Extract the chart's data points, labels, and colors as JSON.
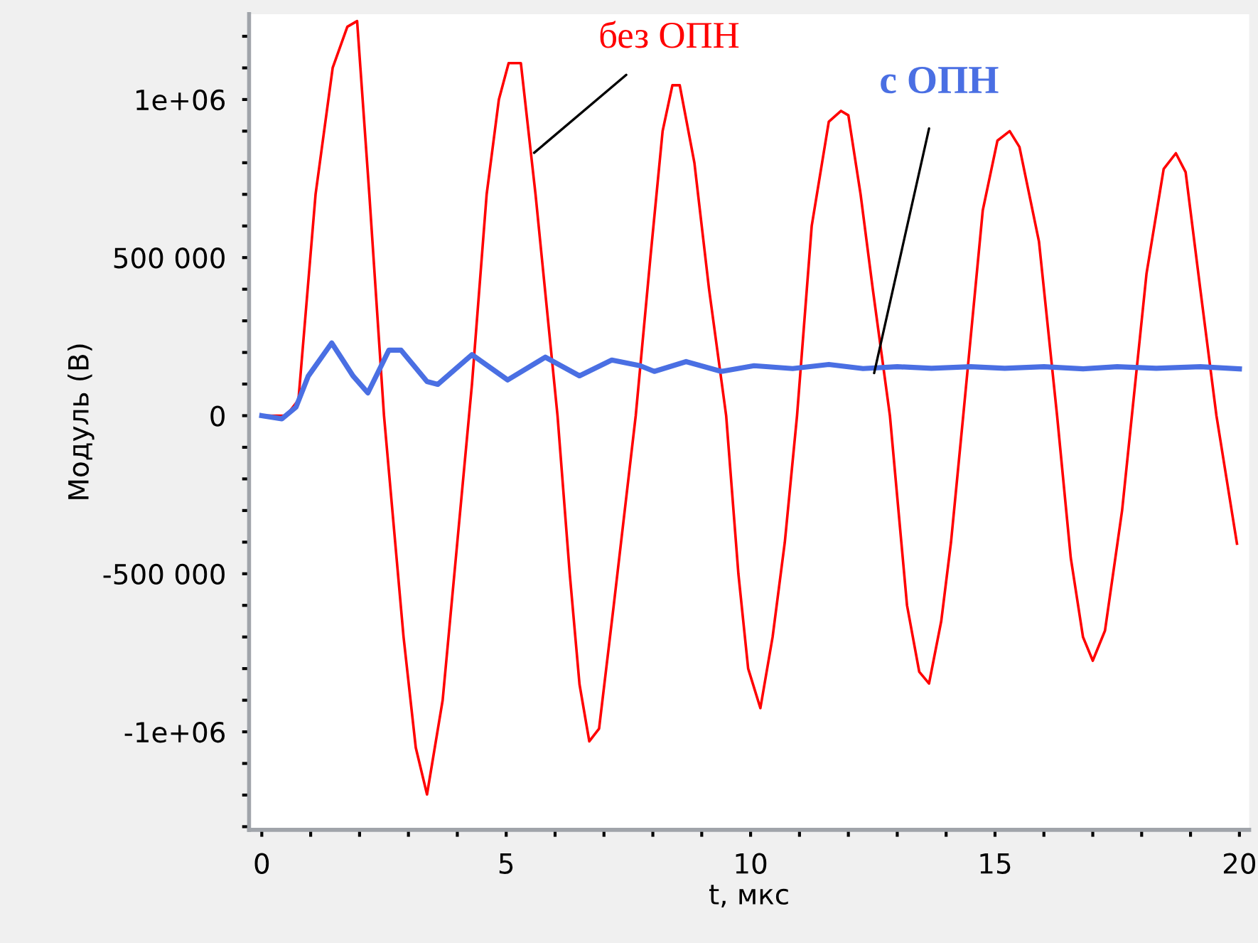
{
  "chart_data": {
    "type": "line",
    "xlabel": "t, мкс",
    "ylabel": "Модуль (В)",
    "xlim": [
      -0.26,
      20.2
    ],
    "ylim": [
      -1310000,
      1270000
    ],
    "xticks": [
      0,
      {
        "value": 1,
        "label": null
      },
      {
        "value": 2,
        "label": null
      },
      {
        "value": 3,
        "label": null
      },
      {
        "value": 4,
        "label": null
      },
      5,
      {
        "value": 6,
        "label": null
      },
      {
        "value": 7,
        "label": null
      },
      {
        "value": 8,
        "label": null
      },
      {
        "value": 9,
        "label": null
      },
      10,
      {
        "value": 11,
        "label": null
      },
      {
        "value": 12,
        "label": null
      },
      {
        "value": 13,
        "label": null
      },
      {
        "value": 14,
        "label": null
      },
      15,
      {
        "value": 16,
        "label": null
      },
      {
        "value": 17,
        "label": null
      },
      {
        "value": 18,
        "label": null
      },
      {
        "value": 19,
        "label": null
      },
      20
    ],
    "yticks": [
      {
        "value": -1300000,
        "label": null
      },
      {
        "value": -1200000,
        "label": null
      },
      {
        "value": -1100000,
        "label": null
      },
      {
        "value": -1000000,
        "label": "-1e+06"
      },
      {
        "value": -900000,
        "label": null
      },
      {
        "value": -800000,
        "label": null
      },
      {
        "value": -700000,
        "label": null
      },
      {
        "value": -600000,
        "label": null
      },
      {
        "value": -500000,
        "label": "-500 000"
      },
      {
        "value": -400000,
        "label": null
      },
      {
        "value": -300000,
        "label": null
      },
      {
        "value": -200000,
        "label": null
      },
      {
        "value": -100000,
        "label": null
      },
      0,
      {
        "value": 100000,
        "label": null
      },
      {
        "value": 200000,
        "label": null
      },
      {
        "value": 300000,
        "label": null
      },
      {
        "value": 400000,
        "label": null
      },
      {
        "value": 500000,
        "label": "500 000"
      },
      {
        "value": 600000,
        "label": null
      },
      {
        "value": 700000,
        "label": null
      },
      {
        "value": 800000,
        "label": null
      },
      {
        "value": 900000,
        "label": null
      },
      {
        "value": 1000000,
        "label": "1e+06"
      },
      {
        "value": 1100000,
        "label": null
      },
      {
        "value": 1200000,
        "label": null
      }
    ],
    "grid": false,
    "legend": false,
    "marker": "none",
    "line_style": "solid",
    "series": [
      {
        "name": "без ОПН",
        "color": "#ff0000",
        "x": [
          0,
          0.5,
          0.75,
          1.1,
          1.45,
          1.75,
          1.95,
          2.2,
          2.5,
          2.9,
          3.15,
          3.38,
          3.7,
          4.0,
          4.3,
          4.6,
          4.85,
          5.05,
          5.3,
          5.6,
          6.05,
          6.3,
          6.5,
          6.7,
          6.9,
          7.2,
          7.65,
          7.95,
          8.2,
          8.4,
          8.55,
          8.85,
          9.15,
          9.5,
          9.75,
          9.95,
          10.2,
          10.45,
          10.7,
          10.95,
          11.25,
          11.6,
          11.85,
          12.0,
          12.25,
          12.5,
          12.85,
          13.2,
          13.45,
          13.65,
          13.9,
          14.1,
          14.35,
          14.75,
          15.05,
          15.3,
          15.5,
          15.9,
          16.27,
          16.55,
          16.8,
          17.0,
          17.25,
          17.6,
          17.8,
          18.1,
          18.45,
          18.7,
          18.9,
          19.2,
          19.53,
          19.95
        ],
        "values": [
          0,
          0,
          50000,
          700000,
          1100000,
          1230000,
          1248000,
          700000,
          0,
          -700000,
          -1050000,
          -1198000,
          -900000,
          -400000,
          100000,
          700000,
          1000000,
          1115000,
          1115000,
          700000,
          0,
          -500000,
          -850000,
          -1030000,
          -990000,
          -600000,
          0,
          500000,
          900000,
          1045000,
          1045000,
          800000,
          400000,
          0,
          -500000,
          -800000,
          -925000,
          -700000,
          -400000,
          0,
          600000,
          930000,
          964000,
          950000,
          700000,
          400000,
          0,
          -600000,
          -810000,
          -847000,
          -650000,
          -400000,
          0,
          650000,
          870000,
          900000,
          850000,
          550000,
          0,
          -450000,
          -700000,
          -775000,
          -680000,
          -300000,
          0,
          450000,
          780000,
          830000,
          770000,
          400000,
          0,
          -405000
        ]
      },
      {
        "name": "с ОПН",
        "color": "#4a6fe3",
        "x": [
          0,
          0.41,
          0.7,
          0.95,
          1.43,
          1.87,
          2.17,
          2.6,
          2.85,
          3.38,
          3.6,
          4.3,
          5.03,
          5.8,
          6.5,
          7.16,
          7.74,
          8.03,
          8.68,
          9.4,
          10.07,
          10.86,
          11.6,
          12.3,
          13.0,
          13.7,
          14.5,
          15.2,
          16.0,
          16.8,
          17.5,
          18.3,
          19.2,
          20.0
        ],
        "values": [
          0,
          -10000,
          27000,
          125000,
          230000,
          125000,
          72000,
          207000,
          207000,
          108000,
          99000,
          193000,
          113000,
          185000,
          126000,
          176000,
          158000,
          140000,
          171000,
          140000,
          158000,
          149000,
          162000,
          149000,
          155000,
          150000,
          155000,
          150000,
          155000,
          148000,
          155000,
          150000,
          155000,
          148000
        ]
      }
    ]
  }
}
